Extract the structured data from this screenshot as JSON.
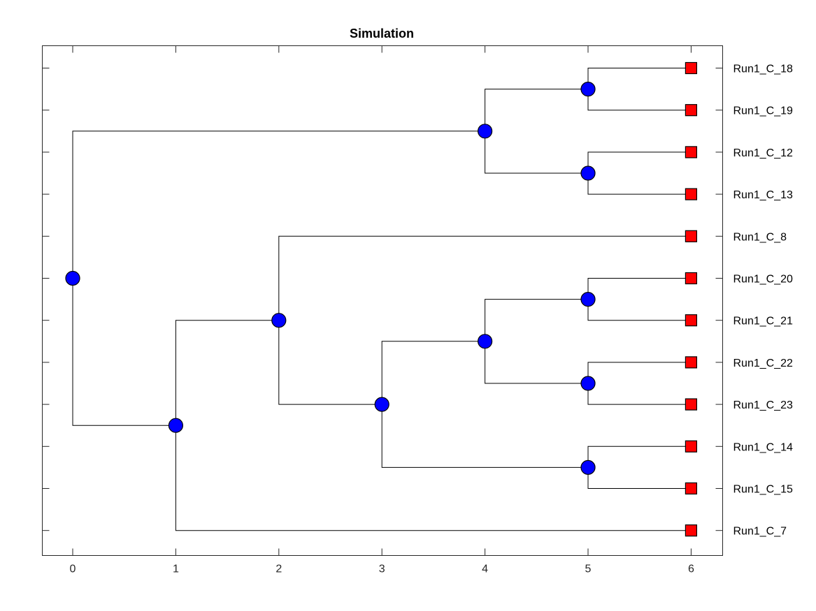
{
  "chart_data": {
    "type": "dendrogram",
    "title": "Simulation",
    "xlabel": "",
    "ylabel": "",
    "xlim": [
      -0.3,
      6.3
    ],
    "x_ticks": [
      0,
      1,
      2,
      3,
      4,
      5,
      6
    ],
    "x_tick_labels": [
      "0",
      "1",
      "2",
      "3",
      "4",
      "5",
      "6"
    ],
    "grid": false,
    "leaves": [
      "Run1_C_18",
      "Run1_C_19",
      "Run1_C_12",
      "Run1_C_13",
      "Run1_C_8",
      "Run1_C_20",
      "Run1_C_21",
      "Run1_C_22",
      "Run1_C_23",
      "Run1_C_14",
      "Run1_C_15",
      "Run1_C_7"
    ],
    "leaf_depth": 6,
    "tree": {
      "depth": 0,
      "children": [
        {
          "depth": 4,
          "children": [
            {
              "depth": 5,
              "children": [
                {
                  "leaf": "Run1_C_18"
                },
                {
                  "leaf": "Run1_C_19"
                }
              ]
            },
            {
              "depth": 5,
              "children": [
                {
                  "leaf": "Run1_C_12"
                },
                {
                  "leaf": "Run1_C_13"
                }
              ]
            }
          ]
        },
        {
          "depth": 1,
          "children": [
            {
              "depth": 2,
              "children": [
                {
                  "leaf": "Run1_C_8"
                },
                {
                  "depth": 3,
                  "children": [
                    {
                      "depth": 4,
                      "children": [
                        {
                          "depth": 5,
                          "children": [
                            {
                              "leaf": "Run1_C_20"
                            },
                            {
                              "leaf": "Run1_C_21"
                            }
                          ]
                        },
                        {
                          "depth": 5,
                          "children": [
                            {
                              "leaf": "Run1_C_22"
                            },
                            {
                              "leaf": "Run1_C_23"
                            }
                          ]
                        }
                      ]
                    },
                    {
                      "depth": 5,
                      "children": [
                        {
                          "leaf": "Run1_C_14"
                        },
                        {
                          "leaf": "Run1_C_15"
                        }
                      ]
                    }
                  ]
                }
              ]
            },
            {
              "leaf": "Run1_C_7"
            }
          ]
        }
      ]
    },
    "colors": {
      "internal_node": "#0000ff",
      "leaf_node": "#ff0000",
      "lines": "#000000",
      "axes": "#262626"
    }
  }
}
